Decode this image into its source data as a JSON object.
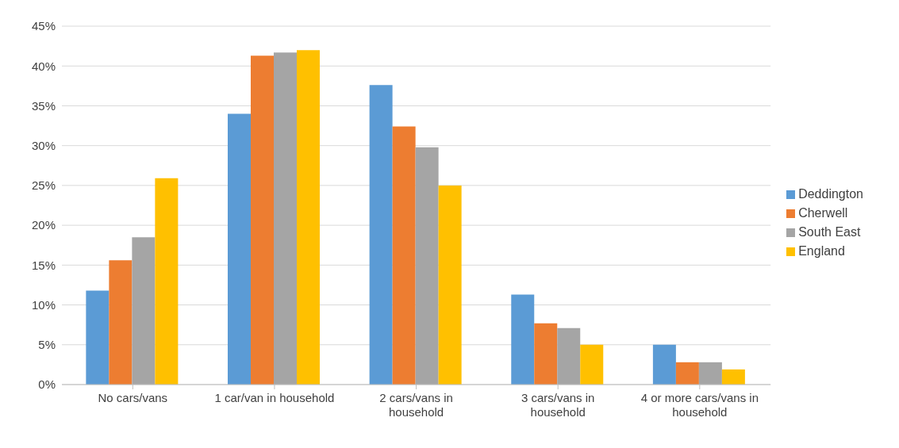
{
  "chart_data": {
    "type": "bar",
    "categories": [
      "No cars/vans",
      "1 car/van in household",
      "2 cars/vans in household",
      "3 cars/vans in household",
      "4 or more cars/vans in household"
    ],
    "series": [
      {
        "name": "Deddington",
        "color": "#5b9bd5",
        "values": [
          11.8,
          34.0,
          37.6,
          11.3,
          5.0
        ]
      },
      {
        "name": "Cherwell",
        "color": "#ed7d31",
        "values": [
          15.6,
          41.3,
          32.4,
          7.7,
          2.8
        ]
      },
      {
        "name": "South East",
        "color": "#a5a5a5",
        "values": [
          18.5,
          41.7,
          29.8,
          7.1,
          2.8
        ]
      },
      {
        "name": "England",
        "color": "#ffc000",
        "values": [
          25.9,
          42.0,
          25.0,
          5.0,
          1.9
        ]
      }
    ],
    "ylim": [
      0,
      45
    ],
    "yticks": [
      {
        "value": 0,
        "label": "0%"
      },
      {
        "value": 5,
        "label": "5%"
      },
      {
        "value": 10,
        "label": "10%"
      },
      {
        "value": 15,
        "label": "15%"
      },
      {
        "value": 20,
        "label": "20%"
      },
      {
        "value": 25,
        "label": "25%"
      },
      {
        "value": 30,
        "label": "30%"
      },
      {
        "value": 35,
        "label": "35%"
      },
      {
        "value": 40,
        "label": "40%"
      },
      {
        "value": 45,
        "label": "45%"
      }
    ],
    "grid": "y",
    "legend": "right"
  }
}
